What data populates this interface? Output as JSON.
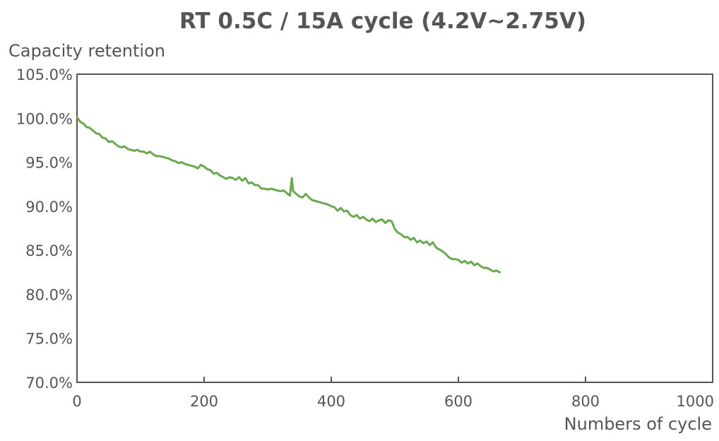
{
  "chart_data": {
    "type": "line",
    "title": "RT 0.5C / 15A cycle (4.2V~2.75V)",
    "ylabel": "Capacity retention",
    "xlabel": "Numbers of cycle",
    "xlim": [
      0,
      1000
    ],
    "ylim": [
      70,
      105
    ],
    "xticks": [
      "0",
      "200",
      "400",
      "600",
      "800",
      "1000"
    ],
    "yticks": [
      "70.0%",
      "75.0%",
      "80.0%",
      "85.0%",
      "90.0%",
      "95.0%",
      "100.0%",
      "105.0%"
    ],
    "grid": false,
    "series": [
      {
        "color": "#6aa84f",
        "x": [
          0,
          5,
          10,
          15,
          20,
          25,
          30,
          35,
          40,
          45,
          50,
          55,
          60,
          65,
          70,
          75,
          80,
          85,
          90,
          95,
          100,
          105,
          110,
          115,
          120,
          125,
          130,
          135,
          140,
          145,
          150,
          155,
          160,
          165,
          170,
          175,
          180,
          185,
          190,
          195,
          200,
          205,
          210,
          215,
          220,
          225,
          230,
          235,
          240,
          245,
          250,
          255,
          260,
          265,
          270,
          275,
          280,
          285,
          290,
          295,
          300,
          305,
          310,
          315,
          320,
          325,
          330,
          335,
          338,
          340,
          342,
          345,
          350,
          355,
          360,
          365,
          370,
          375,
          380,
          385,
          390,
          395,
          400,
          405,
          410,
          415,
          420,
          425,
          430,
          435,
          440,
          445,
          450,
          455,
          460,
          465,
          470,
          475,
          480,
          485,
          490,
          495,
          500,
          505,
          510,
          515,
          520,
          525,
          530,
          535,
          540,
          545,
          550,
          555,
          560,
          565,
          570,
          575,
          580,
          585,
          590,
          595,
          600,
          605,
          610,
          615,
          620,
          625,
          630,
          635,
          640,
          645,
          650,
          655,
          660,
          665
        ],
        "y": [
          100.1,
          99.6,
          99.4,
          99.0,
          98.9,
          98.6,
          98.3,
          98.2,
          97.8,
          97.7,
          97.3,
          97.4,
          97.1,
          96.8,
          96.7,
          96.8,
          96.5,
          96.4,
          96.3,
          96.4,
          96.2,
          96.2,
          96.0,
          96.2,
          95.9,
          95.7,
          95.7,
          95.6,
          95.5,
          95.4,
          95.2,
          95.1,
          94.9,
          95.0,
          94.8,
          94.7,
          94.6,
          94.5,
          94.3,
          94.7,
          94.5,
          94.2,
          94.1,
          93.7,
          93.8,
          93.5,
          93.3,
          93.1,
          93.3,
          93.2,
          93.0,
          93.3,
          92.9,
          93.2,
          92.6,
          92.7,
          92.4,
          92.4,
          92.0,
          92.0,
          91.9,
          92.0,
          91.9,
          91.8,
          91.7,
          91.8,
          91.5,
          91.2,
          93.2,
          91.7,
          91.6,
          91.4,
          91.1,
          91.0,
          91.4,
          91.0,
          90.7,
          90.6,
          90.5,
          90.4,
          90.3,
          90.2,
          90.0,
          89.9,
          89.5,
          89.8,
          89.4,
          89.5,
          89.0,
          88.8,
          89.0,
          88.6,
          88.8,
          88.5,
          88.3,
          88.6,
          88.2,
          88.4,
          88.5,
          88.1,
          88.4,
          88.3,
          87.4,
          87.0,
          86.8,
          86.5,
          86.5,
          86.2,
          86.4,
          85.9,
          86.1,
          85.8,
          86.0,
          85.6,
          85.9,
          85.3,
          85.1,
          84.9,
          84.6,
          84.2,
          84.0,
          84.0,
          83.9,
          83.6,
          83.8,
          83.5,
          83.7,
          83.3,
          83.5,
          83.2,
          83.0,
          83.0,
          82.8,
          82.6,
          82.7,
          82.5
        ]
      }
    ]
  }
}
